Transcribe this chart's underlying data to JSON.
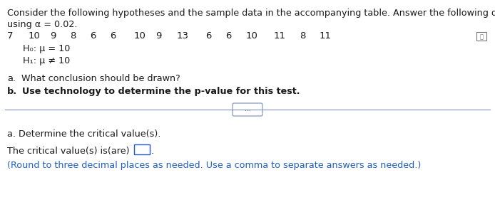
{
  "line1": "Consider the following hypotheses and the sample data in the accompanying table. Answer the following questions",
  "line2": "using α = 0.02.",
  "data_values": [
    "7",
    "10",
    "9",
    "8",
    "6",
    "6",
    "10",
    "9",
    "13",
    "6",
    "6",
    "10",
    "11",
    "8",
    "11"
  ],
  "h0": "H₀: μ = 10",
  "h1": "H₁: μ ≠ 10",
  "qa_label": "a.",
  "qa_text": "  What conclusion should be drawn?",
  "qb_label": "b.",
  "qb_text": "  Use technology to determine the p-value for this test.",
  "sep_dots": "...",
  "section_a": "a. Determine the critical value(s).",
  "critical_line1_pre": "The critical value(s) is(are)",
  "critical_line2": "(Round to three decimal places as needed. Use a comma to separate answers as needed.)",
  "bg_color": "#ffffff",
  "text_color_black": "#1a1a1a",
  "text_color_blue": "#1f5fbd",
  "font_size_main": 9.2,
  "font_size_data": 9.5,
  "font_size_small": 8.5
}
